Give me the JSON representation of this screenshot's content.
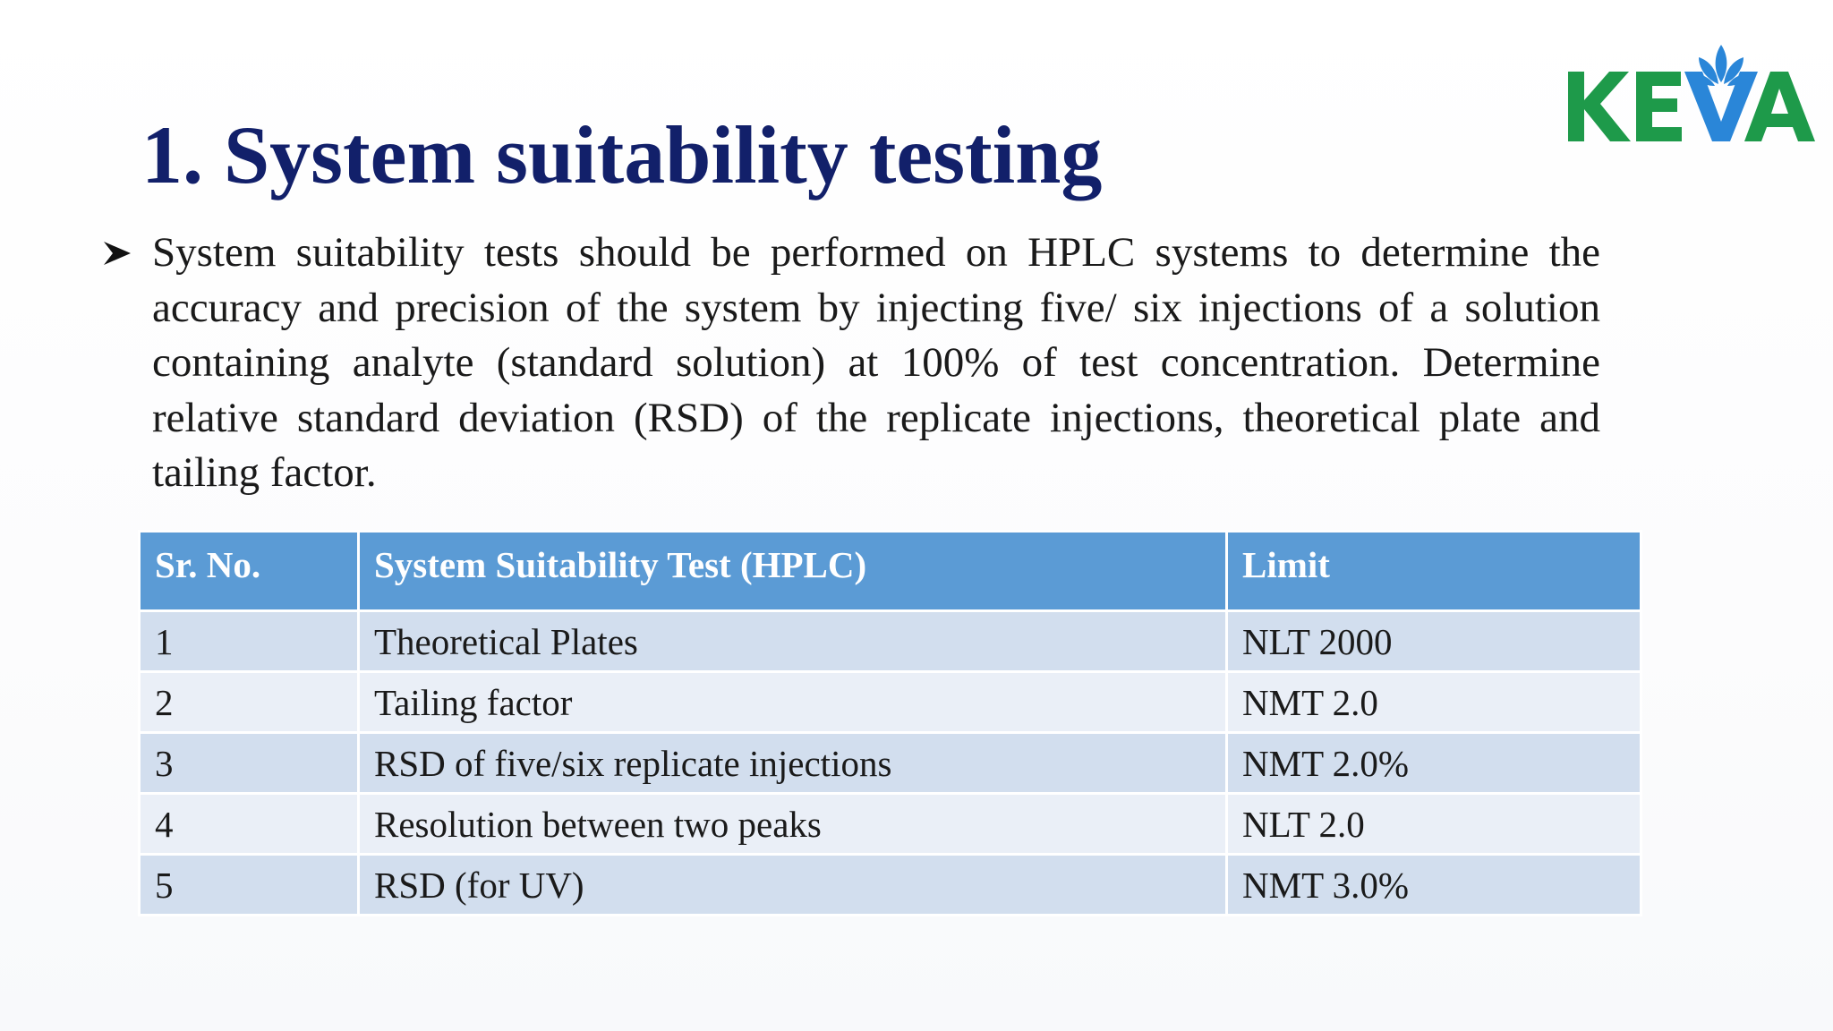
{
  "slide": {
    "title": "1. System suitability testing",
    "logo": {
      "text": "KEVA",
      "icon": "lotus-icon",
      "colors": {
        "text": "#1e9a4a",
        "lotus": "#2a86d8"
      }
    },
    "bullet": {
      "icon": "arrowhead-bullet-icon",
      "text": "System suitability tests should be performed on HPLC systems to determine the accuracy and precision of the system by injecting five/ six injections of a solution containing analyte (standard solution) at 100% of test concentration. Determine relative standard deviation (RSD) of the replicate injections, theoretical plate and tailing factor."
    },
    "table": {
      "headers": [
        "Sr. No.",
        "System Suitability Test (HPLC)",
        "Limit"
      ],
      "rows": [
        [
          "1",
          "Theoretical Plates",
          "NLT 2000"
        ],
        [
          "2",
          "Tailing factor",
          "NMT 2.0"
        ],
        [
          "3",
          "RSD of five/six replicate injections",
          "NMT 2.0%"
        ],
        [
          "4",
          "Resolution between two peaks",
          "NLT 2.0"
        ],
        [
          "5",
          "RSD (for UV)",
          "NMT 3.0%"
        ]
      ]
    },
    "colors": {
      "title": "#12206a",
      "header_bg": "#5b9bd5",
      "row_odd_bg": "#d2deee",
      "row_even_bg": "#eaeff7"
    }
  }
}
